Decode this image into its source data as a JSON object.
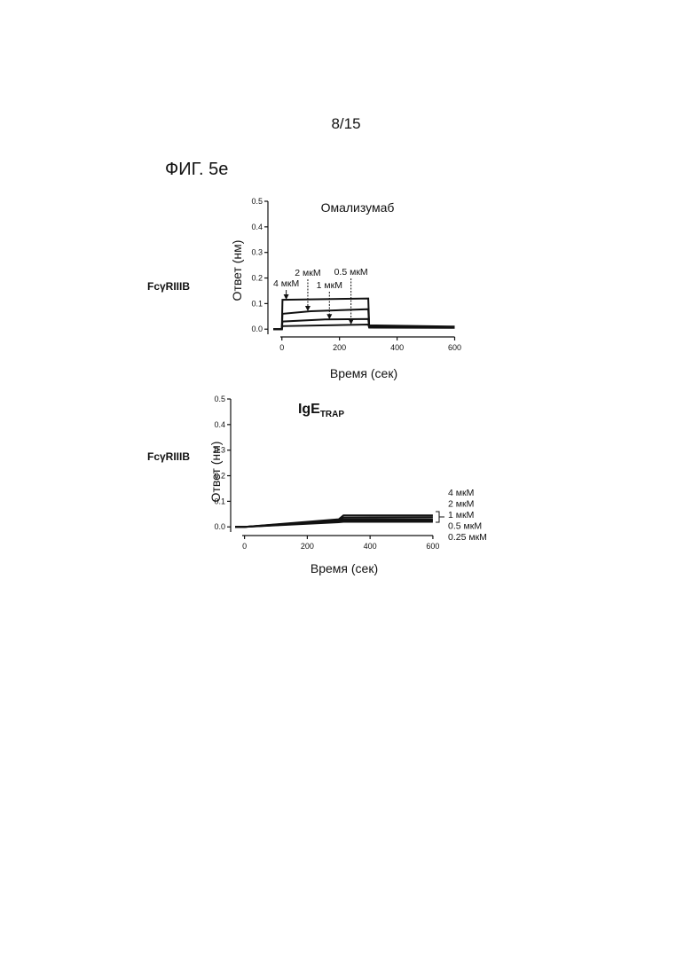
{
  "page": {
    "number": "8/15",
    "figure": "ФИГ. 5е"
  },
  "colors": {
    "ink": "#111111",
    "background": "#ffffff"
  },
  "chart_data": [
    {
      "type": "line",
      "row_label": "FcγRIIIB",
      "title": "Омализумаб",
      "xlabel": "Время (сек)",
      "ylabel": "Ответ (нм)",
      "xlim": [
        -30,
        620
      ],
      "ylim": [
        -0.02,
        0.5
      ],
      "x_ticks": [
        "0",
        "200",
        "400",
        "600"
      ],
      "y_ticks": [
        "0.0",
        "0.1",
        "0.2",
        "0.3",
        "0.4",
        "0.5"
      ],
      "grid": false,
      "series": [
        {
          "name": "4 мкМ",
          "points": [
            [
              -30,
              0.0
            ],
            [
              0,
              0.0
            ],
            [
              2,
              0.115
            ],
            [
              300,
              0.12
            ],
            [
              303,
              0.015
            ],
            [
              600,
              0.01
            ]
          ]
        },
        {
          "name": "2 мкМ",
          "points": [
            [
              -30,
              0.0
            ],
            [
              0,
              0.0
            ],
            [
              2,
              0.06
            ],
            [
              100,
              0.07
            ],
            [
              300,
              0.078
            ],
            [
              303,
              0.012
            ],
            [
              600,
              0.009
            ]
          ]
        },
        {
          "name": "1 мкМ",
          "points": [
            [
              -30,
              0.0
            ],
            [
              0,
              0.0
            ],
            [
              2,
              0.03
            ],
            [
              150,
              0.038
            ],
            [
              300,
              0.04
            ],
            [
              303,
              0.01
            ],
            [
              600,
              0.008
            ]
          ]
        },
        {
          "name": "0.5 мкМ",
          "points": [
            [
              -30,
              0.0
            ],
            [
              0,
              0.0
            ],
            [
              2,
              0.012
            ],
            [
              300,
              0.018
            ],
            [
              303,
              0.006
            ],
            [
              600,
              0.005
            ]
          ]
        }
      ],
      "annotations": [
        {
          "text": "4 мкМ",
          "x": 15,
          "y": 0.115
        },
        {
          "text": "2 мкМ",
          "x": 90,
          "y": 0.07
        },
        {
          "text": "1 мкМ",
          "x": 165,
          "y": 0.038
        },
        {
          "text": "0.5 мкМ",
          "x": 240,
          "y": 0.018
        }
      ]
    },
    {
      "type": "line",
      "row_label": "FcγRIIIB",
      "title_main": "IgE",
      "title_sub": "TRAP",
      "xlabel": "Время (сек)",
      "ylabel": "Ответ (нм)",
      "xlim": [
        -30,
        620
      ],
      "ylim": [
        -0.02,
        0.5
      ],
      "x_ticks": [
        "0",
        "200",
        "400",
        "600"
      ],
      "y_ticks": [
        "0.0",
        "0.1",
        "0.2",
        "0.3",
        "0.4",
        "0.5"
      ],
      "grid": false,
      "series": [
        {
          "name": "4 мкМ",
          "points": [
            [
              -30,
              0.0
            ],
            [
              0,
              0.0
            ],
            [
              300,
              0.03
            ],
            [
              315,
              0.045
            ],
            [
              600,
              0.045
            ]
          ]
        },
        {
          "name": "2 мкМ",
          "points": [
            [
              -30,
              0.0
            ],
            [
              0,
              0.0
            ],
            [
              300,
              0.027
            ],
            [
              315,
              0.037
            ],
            [
              600,
              0.038
            ]
          ]
        },
        {
          "name": "1 мкМ",
          "points": [
            [
              -30,
              0.0
            ],
            [
              0,
              0.0
            ],
            [
              300,
              0.024
            ],
            [
              315,
              0.03
            ],
            [
              600,
              0.03
            ]
          ]
        },
        {
          "name": "0.5 мкМ",
          "points": [
            [
              -30,
              0.0
            ],
            [
              0,
              0.0
            ],
            [
              300,
              0.021
            ],
            [
              315,
              0.025
            ],
            [
              600,
              0.025
            ]
          ]
        },
        {
          "name": "0.25 мкМ",
          "points": [
            [
              -30,
              0.0
            ],
            [
              0,
              0.0
            ],
            [
              300,
              0.018
            ],
            [
              315,
              0.02
            ],
            [
              600,
              0.02
            ]
          ]
        }
      ],
      "legend": [
        "4 мкМ",
        "2 мкМ",
        "1 мкМ",
        "0.5 мкМ",
        "0.25 мкМ"
      ]
    }
  ]
}
